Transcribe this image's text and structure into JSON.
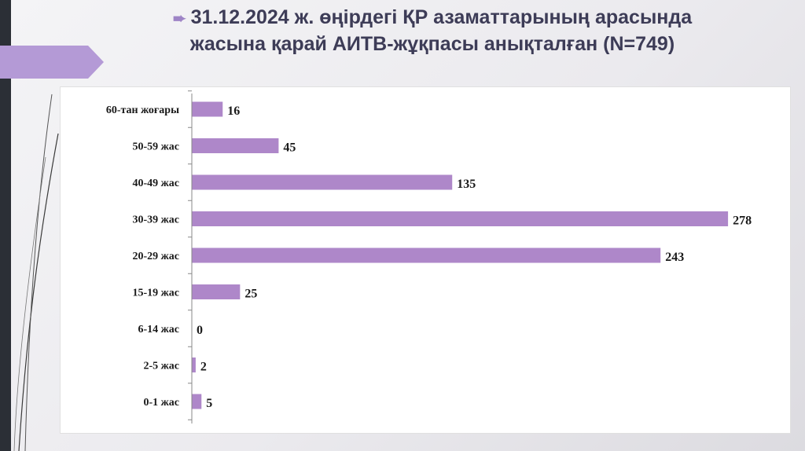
{
  "slide": {
    "title_line1": "31.12.2024 ж. өңірдегі ҚР азаматтарының арасында",
    "title_line2": "жасына қарай АИТВ-жұқпасы анықталған (N=749)",
    "bullet_icon": "arrow-right-icon"
  },
  "colors": {
    "bar": "#ae87c9",
    "title": "#3d3c57",
    "accent": "#9e84c6"
  },
  "chart_data": {
    "type": "bar",
    "orientation": "horizontal",
    "categories": [
      "60-тан жоғары",
      "50-59 жас",
      "40-49 жас",
      "30-39 жас",
      "20-29 жас",
      "15-19 жас",
      "6-14 жас",
      "2-5 жас",
      "0-1 жас"
    ],
    "values": [
      16,
      45,
      135,
      278,
      243,
      25,
      0,
      2,
      5
    ],
    "data_labels": [
      "16",
      "45",
      "135",
      "278",
      "243",
      "25",
      "0",
      "2",
      "5"
    ],
    "title": "31.12.2024 ж. өңірдегі ҚР азаматтарының арасында жасына қарай АИТВ-жұқпасы анықталған (N=749)",
    "xlabel": "",
    "ylabel": "",
    "xlim": [
      0,
      280
    ],
    "grid": false,
    "legend": "none"
  }
}
